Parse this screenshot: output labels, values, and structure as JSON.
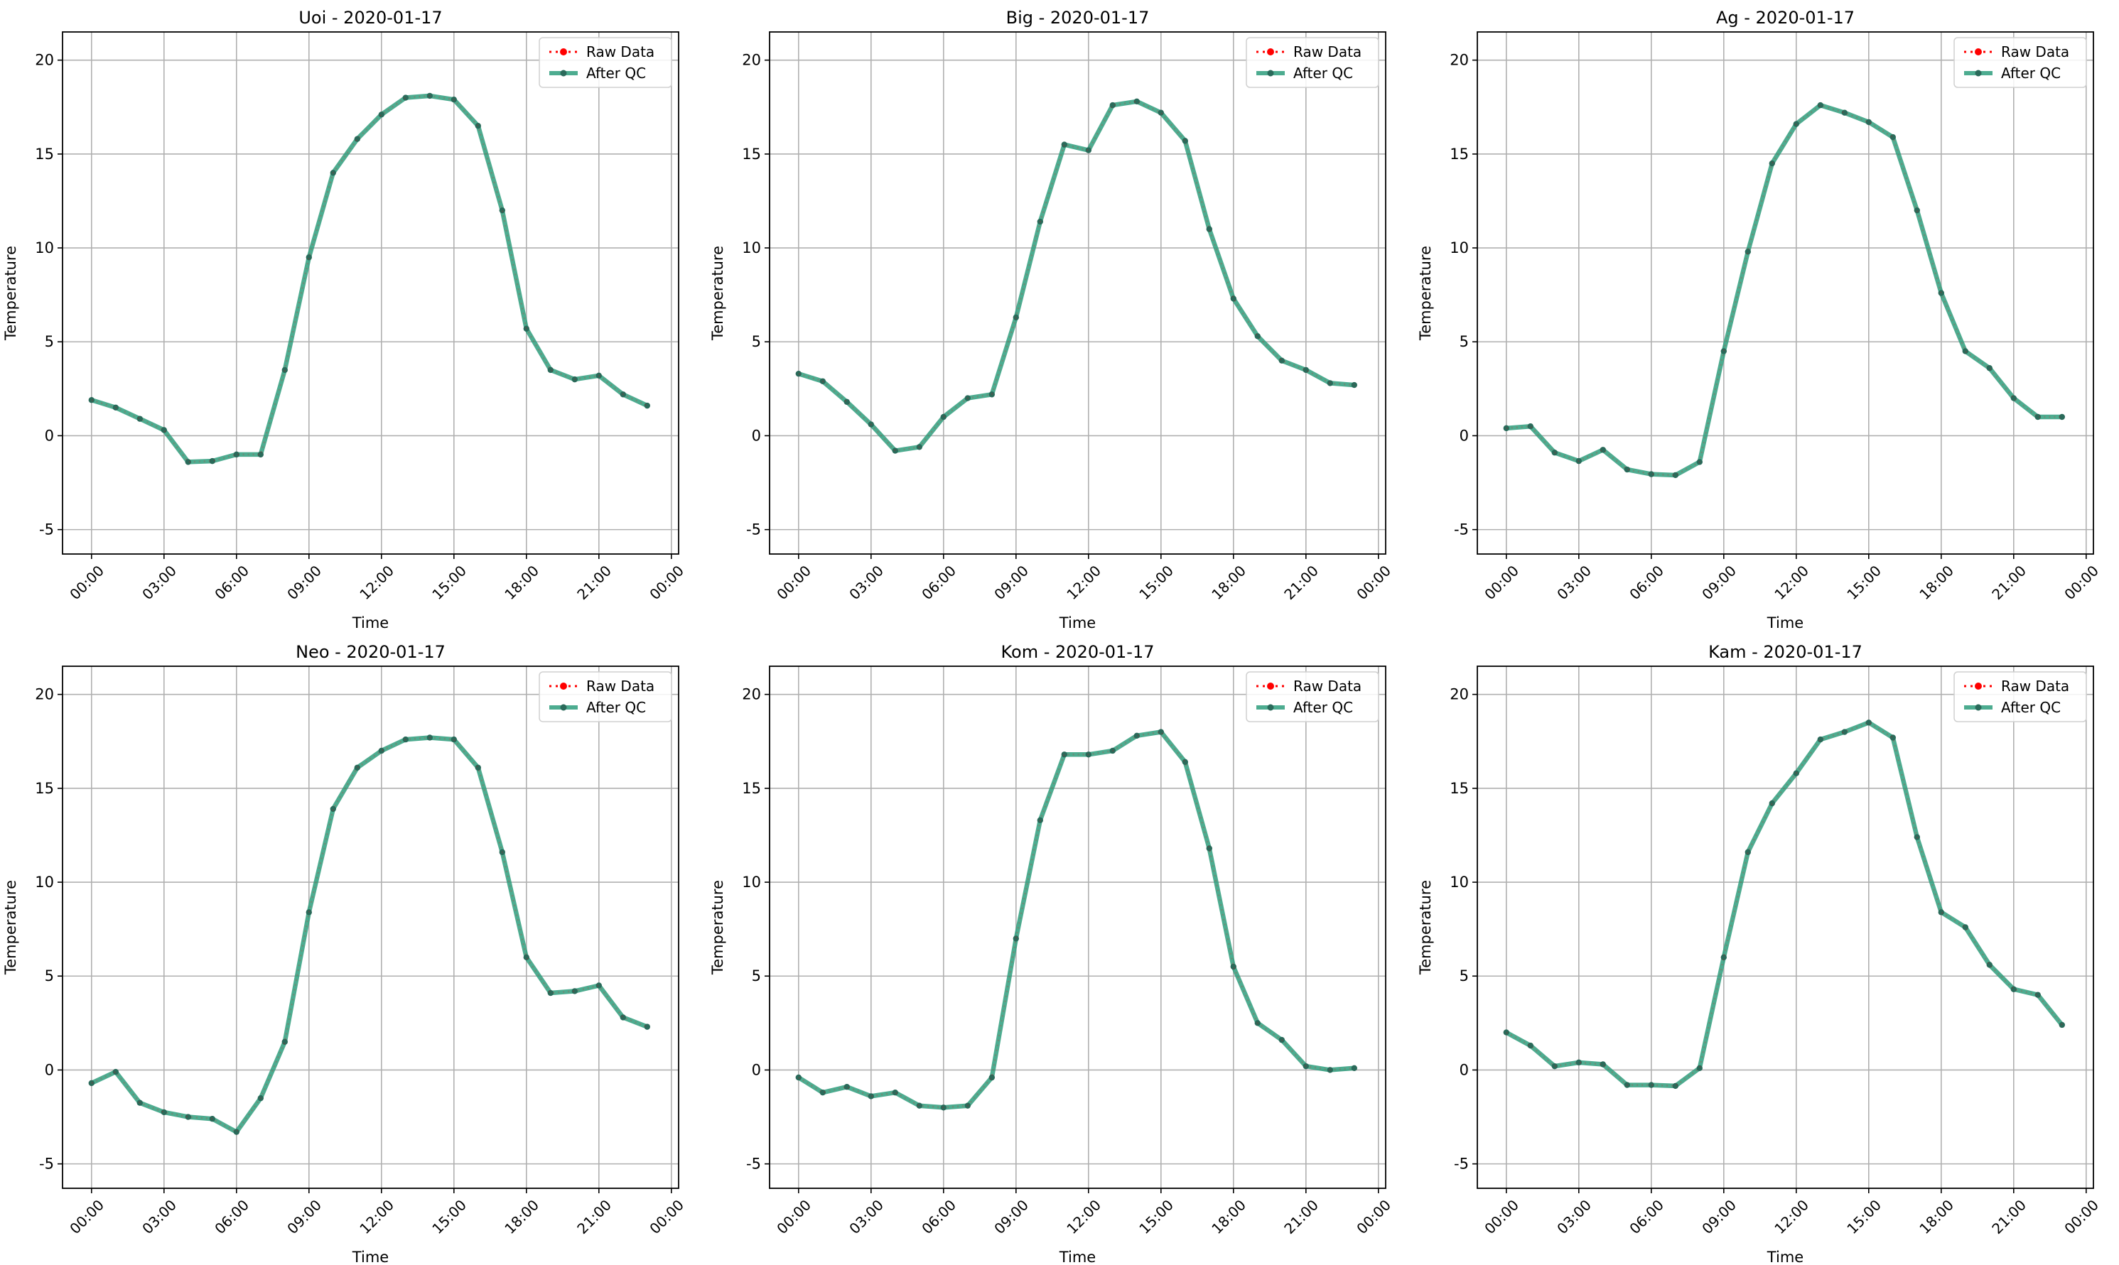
{
  "figure": {
    "background": "#ffffff",
    "colors": {
      "raw": "#ff0000",
      "qc": "#2e9e7c",
      "qc_marker": "#2a6a5a",
      "grid": "#b0b0b0",
      "axis": "#000000"
    }
  },
  "chart_data": [
    {
      "type": "line",
      "title": "Uoi - 2020-01-17",
      "xlabel": "Time",
      "ylabel": "Temperature",
      "xticks": [
        "00:00",
        "03:00",
        "06:00",
        "09:00",
        "12:00",
        "15:00",
        "18:00",
        "21:00",
        "00:00"
      ],
      "yticks": [
        -5,
        0,
        5,
        10,
        15,
        20
      ],
      "ylim": [
        -6.3,
        21.5
      ],
      "xlim_hours": [
        -1.2,
        24.3
      ],
      "grid": true,
      "legend_position": "top-right",
      "x_hours": [
        0,
        1,
        2,
        3,
        4,
        5,
        6,
        7,
        8,
        9,
        10,
        11,
        12,
        13,
        14,
        15,
        16,
        17,
        18,
        19,
        20,
        21,
        22,
        23
      ],
      "series": [
        {
          "name": "Raw Data",
          "style": "dotted-red-markers",
          "values": [
            1.9,
            1.5,
            0.9,
            0.3,
            -1.4,
            -1.35,
            -1.0,
            -1.0,
            3.5,
            9.5,
            14.0,
            15.8,
            17.1,
            18.0,
            18.1,
            17.9,
            16.5,
            12.0,
            5.7,
            3.5,
            3.0,
            3.2,
            2.2,
            1.6
          ]
        },
        {
          "name": "After QC",
          "style": "solid-green-markers",
          "values": [
            1.9,
            1.5,
            0.9,
            0.3,
            -1.4,
            -1.35,
            -1.0,
            -1.0,
            3.5,
            9.5,
            14.0,
            15.8,
            17.1,
            18.0,
            18.1,
            17.9,
            16.5,
            12.0,
            5.7,
            3.5,
            3.0,
            3.2,
            2.2,
            1.6
          ]
        }
      ]
    },
    {
      "type": "line",
      "title": "Big - 2020-01-17",
      "xlabel": "Time",
      "ylabel": "Temperature",
      "xticks": [
        "00:00",
        "03:00",
        "06:00",
        "09:00",
        "12:00",
        "15:00",
        "18:00",
        "21:00",
        "00:00"
      ],
      "yticks": [
        -5,
        0,
        5,
        10,
        15,
        20
      ],
      "ylim": [
        -6.3,
        21.5
      ],
      "xlim_hours": [
        -1.2,
        24.3
      ],
      "grid": true,
      "legend_position": "top-right",
      "x_hours": [
        0,
        1,
        2,
        3,
        4,
        5,
        6,
        7,
        8,
        9,
        10,
        11,
        12,
        13,
        14,
        15,
        16,
        17,
        18,
        19,
        20,
        21,
        22,
        23
      ],
      "series": [
        {
          "name": "Raw Data",
          "style": "dotted-red-markers",
          "values": [
            3.3,
            2.9,
            1.8,
            0.6,
            -0.8,
            -0.6,
            1.0,
            2.0,
            2.2,
            6.3,
            11.4,
            15.5,
            15.2,
            17.6,
            17.8,
            17.2,
            15.7,
            11.0,
            7.3,
            5.3,
            4.0,
            3.5,
            2.8,
            2.7
          ]
        },
        {
          "name": "After QC",
          "style": "solid-green-markers",
          "values": [
            3.3,
            2.9,
            1.8,
            0.6,
            -0.8,
            -0.6,
            1.0,
            2.0,
            2.2,
            6.3,
            11.4,
            15.5,
            15.2,
            17.6,
            17.8,
            17.2,
            15.7,
            11.0,
            7.3,
            5.3,
            4.0,
            3.5,
            2.8,
            2.7
          ]
        }
      ]
    },
    {
      "type": "line",
      "title": "Ag - 2020-01-17",
      "xlabel": "Time",
      "ylabel": "Temperature",
      "xticks": [
        "00:00",
        "03:00",
        "06:00",
        "09:00",
        "12:00",
        "15:00",
        "18:00",
        "21:00",
        "00:00"
      ],
      "yticks": [
        -5,
        0,
        5,
        10,
        15,
        20
      ],
      "ylim": [
        -6.3,
        21.5
      ],
      "xlim_hours": [
        -1.2,
        24.3
      ],
      "grid": true,
      "legend_position": "top-right",
      "x_hours": [
        0,
        1,
        2,
        3,
        4,
        5,
        6,
        7,
        8,
        9,
        10,
        11,
        12,
        13,
        14,
        15,
        16,
        17,
        18,
        19,
        20,
        21,
        22,
        23
      ],
      "series": [
        {
          "name": "Raw Data",
          "style": "dotted-red-markers",
          "values": [
            0.4,
            0.5,
            -0.9,
            -1.35,
            -0.75,
            -1.8,
            -2.05,
            -2.1,
            -1.4,
            4.5,
            9.8,
            14.5,
            16.6,
            17.6,
            17.2,
            16.7,
            15.9,
            12.0,
            7.6,
            4.5,
            3.6,
            2.0,
            1.0,
            1.0
          ]
        },
        {
          "name": "After QC",
          "style": "solid-green-markers",
          "values": [
            0.4,
            0.5,
            -0.9,
            -1.35,
            -0.75,
            -1.8,
            -2.05,
            -2.1,
            -1.4,
            4.5,
            9.8,
            14.5,
            16.6,
            17.6,
            17.2,
            16.7,
            15.9,
            12.0,
            7.6,
            4.5,
            3.6,
            2.0,
            1.0,
            1.0
          ]
        }
      ]
    },
    {
      "type": "line",
      "title": "Neo - 2020-01-17",
      "xlabel": "Time",
      "ylabel": "Temperature",
      "xticks": [
        "00:00",
        "03:00",
        "06:00",
        "09:00",
        "12:00",
        "15:00",
        "18:00",
        "21:00",
        "00:00"
      ],
      "yticks": [
        -5,
        0,
        5,
        10,
        15,
        20
      ],
      "ylim": [
        -6.3,
        21.5
      ],
      "xlim_hours": [
        -1.2,
        24.3
      ],
      "grid": true,
      "legend_position": "top-right",
      "x_hours": [
        0,
        1,
        2,
        3,
        4,
        5,
        6,
        7,
        8,
        9,
        10,
        11,
        12,
        13,
        14,
        15,
        16,
        17,
        18,
        19,
        20,
        21,
        22,
        23
      ],
      "series": [
        {
          "name": "Raw Data",
          "style": "dotted-red-markers",
          "values": [
            -0.7,
            -0.1,
            -1.75,
            -2.25,
            -2.5,
            -2.6,
            -3.3,
            -1.5,
            1.5,
            8.4,
            13.9,
            16.1,
            17.0,
            17.6,
            17.7,
            17.6,
            16.1,
            11.6,
            6.0,
            4.1,
            4.2,
            4.5,
            2.8,
            2.3
          ]
        },
        {
          "name": "After QC",
          "style": "solid-green-markers",
          "values": [
            -0.7,
            -0.1,
            -1.75,
            -2.25,
            -2.5,
            -2.6,
            -3.3,
            -1.5,
            1.5,
            8.4,
            13.9,
            16.1,
            17.0,
            17.6,
            17.7,
            17.6,
            16.1,
            11.6,
            6.0,
            4.1,
            4.2,
            4.5,
            2.8,
            2.3
          ]
        }
      ]
    },
    {
      "type": "line",
      "title": "Kom - 2020-01-17",
      "xlabel": "Time",
      "ylabel": "Temperature",
      "xticks": [
        "00:00",
        "03:00",
        "06:00",
        "09:00",
        "12:00",
        "15:00",
        "18:00",
        "21:00",
        "00:00"
      ],
      "yticks": [
        -5,
        0,
        5,
        10,
        15,
        20
      ],
      "ylim": [
        -6.3,
        21.5
      ],
      "xlim_hours": [
        -1.2,
        24.3
      ],
      "grid": true,
      "legend_position": "top-right",
      "x_hours": [
        0,
        1,
        2,
        3,
        4,
        5,
        6,
        7,
        8,
        9,
        10,
        11,
        12,
        13,
        14,
        15,
        16,
        17,
        18,
        19,
        20,
        21,
        22,
        23
      ],
      "series": [
        {
          "name": "Raw Data",
          "style": "dotted-red-markers",
          "values": [
            -0.4,
            -1.2,
            -0.9,
            -1.4,
            -1.2,
            -1.9,
            -2.0,
            -1.9,
            -0.4,
            7.0,
            13.3,
            16.8,
            16.8,
            17.0,
            17.8,
            18.0,
            16.4,
            11.8,
            5.5,
            2.5,
            1.6,
            0.2,
            0.0,
            0.1
          ]
        },
        {
          "name": "After QC",
          "style": "solid-green-markers",
          "values": [
            -0.4,
            -1.2,
            -0.9,
            -1.4,
            -1.2,
            -1.9,
            -2.0,
            -1.9,
            -0.4,
            7.0,
            13.3,
            16.8,
            16.8,
            17.0,
            17.8,
            18.0,
            16.4,
            11.8,
            5.5,
            2.5,
            1.6,
            0.2,
            0.0,
            0.1
          ]
        }
      ]
    },
    {
      "type": "line",
      "title": "Kam - 2020-01-17",
      "xlabel": "Time",
      "ylabel": "Temperature",
      "xticks": [
        "00:00",
        "03:00",
        "06:00",
        "09:00",
        "12:00",
        "15:00",
        "18:00",
        "21:00",
        "00:00"
      ],
      "yticks": [
        -5,
        0,
        5,
        10,
        15,
        20
      ],
      "ylim": [
        -6.3,
        21.5
      ],
      "xlim_hours": [
        -1.2,
        24.3
      ],
      "grid": true,
      "legend_position": "top-right",
      "x_hours": [
        0,
        1,
        2,
        3,
        4,
        5,
        6,
        7,
        8,
        9,
        10,
        11,
        12,
        13,
        14,
        15,
        16,
        17,
        18,
        19,
        20,
        21,
        22,
        23
      ],
      "series": [
        {
          "name": "Raw Data",
          "style": "dotted-red-markers",
          "values": [
            2.0,
            1.3,
            0.2,
            0.4,
            0.3,
            -0.8,
            -0.8,
            -0.85,
            0.1,
            6.0,
            11.6,
            14.2,
            15.8,
            17.6,
            18.0,
            18.5,
            17.7,
            12.4,
            8.4,
            7.6,
            5.6,
            4.3,
            4.0,
            2.4
          ]
        },
        {
          "name": "After QC",
          "style": "solid-green-markers",
          "values": [
            2.0,
            1.3,
            0.2,
            0.4,
            0.3,
            -0.8,
            -0.8,
            -0.85,
            0.1,
            6.0,
            11.6,
            14.2,
            15.8,
            17.6,
            18.0,
            18.5,
            17.7,
            12.4,
            8.4,
            7.6,
            5.6,
            4.3,
            4.0,
            2.4
          ]
        }
      ]
    }
  ]
}
